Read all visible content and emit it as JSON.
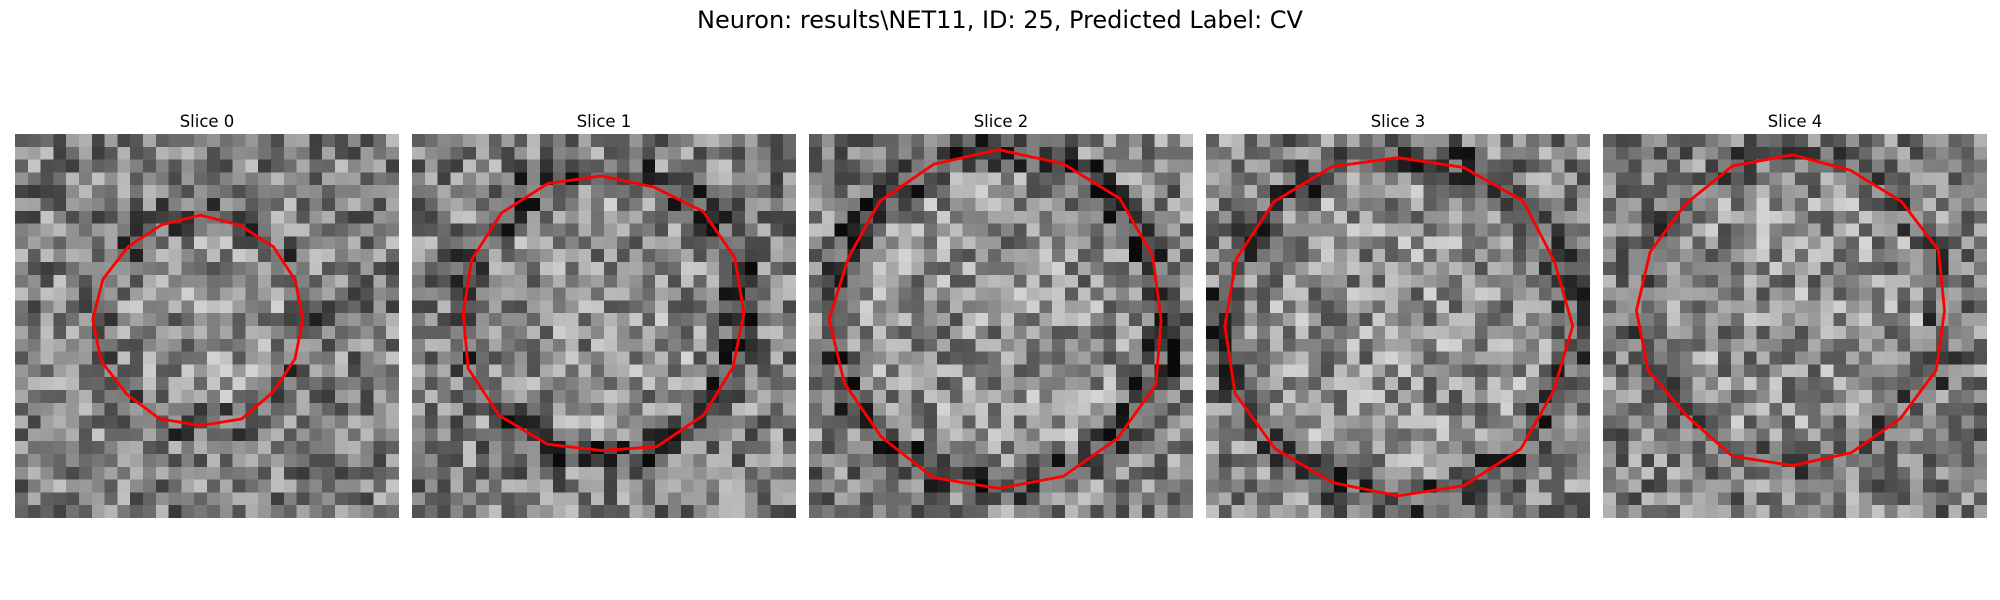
{
  "figure": {
    "title": "Neuron: results\\NET11, ID: 25, Predicted Label: CV"
  },
  "panels": [
    {
      "title": "Slice 0",
      "seed": 11,
      "ring": 0.35,
      "cx": 14.5,
      "cy": 14.5,
      "r": 8.2,
      "contour_color": "#ff0000"
    },
    {
      "title": "Slice 1",
      "seed": 23,
      "ring": 0.55,
      "cx": 14.8,
      "cy": 14.0,
      "r": 11.0,
      "contour_color": "#ff0000"
    },
    {
      "title": "Slice 2",
      "seed": 37,
      "ring": 0.6,
      "cx": 14.8,
      "cy": 14.5,
      "r": 13.0,
      "contour_color": "#ff0000"
    },
    {
      "title": "Slice 3",
      "seed": 41,
      "ring": 0.5,
      "cx": 15.0,
      "cy": 15.0,
      "r": 13.5,
      "contour_color": "#ff0000"
    },
    {
      "title": "Slice 4",
      "seed": 53,
      "ring": 0.3,
      "cx": 14.8,
      "cy": 13.8,
      "r": 12.0,
      "contour_color": "#ff0000"
    }
  ]
}
